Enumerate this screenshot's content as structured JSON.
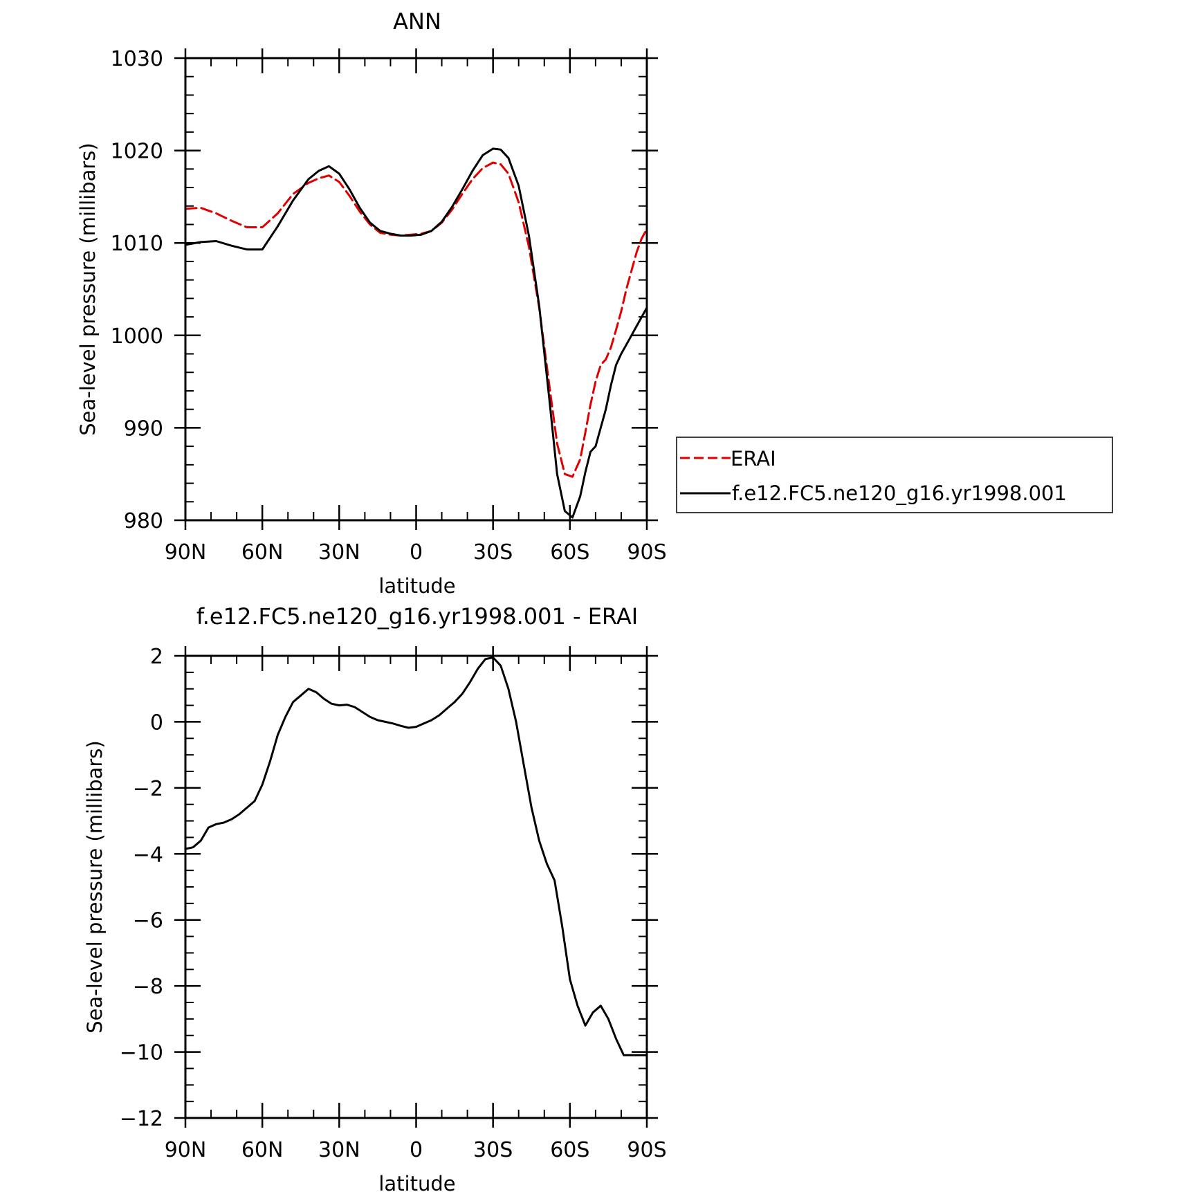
{
  "chart_data": [
    {
      "type": "line",
      "title": "ANN",
      "xlabel": "latitude",
      "ylabel": "Sea-level pressure (millibars)",
      "xlim": [
        90,
        -90
      ],
      "ylim": [
        980,
        1030
      ],
      "xticks": [
        90,
        60,
        30,
        0,
        -30,
        -60,
        -90
      ],
      "xtick_labels": [
        "90N",
        "60N",
        "30N",
        "0",
        "30S",
        "60S",
        "90S"
      ],
      "yticks": [
        980,
        990,
        1000,
        1010,
        1020,
        1030
      ],
      "ytick_labels": [
        "980",
        "990",
        "1000",
        "1010",
        "1020",
        "1030"
      ],
      "legend_position": "right",
      "x": [
        90,
        84,
        78,
        72,
        66,
        60,
        54,
        48,
        42,
        38,
        34,
        30,
        26,
        22,
        18,
        14,
        10,
        6,
        2,
        -2,
        -6,
        -10,
        -14,
        -18,
        -22,
        -26,
        -30,
        -33,
        -36,
        -40,
        -44,
        -48,
        -52,
        -55,
        -58,
        -61,
        -64,
        -66,
        -68,
        -70,
        -72,
        -74,
        -76,
        -78,
        -80,
        -82,
        -84,
        -86,
        -88,
        -90
      ],
      "series": [
        {
          "name": "ERAI",
          "color": "#e00000",
          "dash": "dashed",
          "values": [
            1013.7,
            1013.8,
            1013.2,
            1012.4,
            1011.7,
            1011.7,
            1013.2,
            1015.3,
            1016.5,
            1017.0,
            1017.3,
            1016.6,
            1015.1,
            1013.4,
            1012.0,
            1011.1,
            1010.9,
            1010.8,
            1010.9,
            1011.0,
            1011.3,
            1012.2,
            1013.6,
            1015.3,
            1016.9,
            1018.1,
            1018.7,
            1018.5,
            1017.5,
            1014.4,
            1009.6,
            1003.0,
            994.5,
            988.3,
            985.0,
            984.7,
            986.6,
            989.5,
            992.5,
            995.0,
            996.8,
            997.4,
            998.7,
            1000.6,
            1002.6,
            1005.0,
            1007.0,
            1009.0,
            1010.5,
            1011.5
          ]
        },
        {
          "name": "f.e12.FC5.ne120_g16.yr1998.001",
          "color": "#000000",
          "dash": "solid",
          "values": [
            1009.8,
            1010.1,
            1010.2,
            1009.7,
            1009.3,
            1009.3,
            1011.8,
            1014.6,
            1016.9,
            1017.8,
            1018.3,
            1017.5,
            1015.8,
            1013.8,
            1012.2,
            1011.3,
            1011.0,
            1010.8,
            1010.8,
            1010.9,
            1011.3,
            1012.3,
            1013.9,
            1015.8,
            1017.8,
            1019.5,
            1020.2,
            1020.1,
            1019.2,
            1016.2,
            1010.8,
            1003.2,
            993.0,
            985.0,
            981.0,
            980.3,
            982.6,
            985.2,
            987.4,
            988.0,
            990.0,
            992.0,
            994.6,
            996.8,
            998.0,
            999.0,
            1000.0,
            1001.0,
            1002.0,
            1003.0
          ]
        }
      ]
    },
    {
      "type": "line",
      "title": "f.e12.FC5.ne120_g16.yr1998.001 - ERAI",
      "xlabel": "latitude",
      "ylabel": "Sea-level pressure (millibars)",
      "xlim": [
        90,
        -90
      ],
      "ylim": [
        -12,
        2
      ],
      "xticks": [
        90,
        60,
        30,
        0,
        -30,
        -60,
        -90
      ],
      "xtick_labels": [
        "90N",
        "60N",
        "30N",
        "0",
        "30S",
        "60S",
        "90S"
      ],
      "yticks": [
        -12,
        -10,
        -8,
        -6,
        -4,
        -2,
        0,
        2
      ],
      "ytick_labels": [
        "-12",
        "-10",
        "-8",
        "-6",
        "-4",
        "-2",
        "0",
        "2"
      ],
      "x": [
        90,
        87,
        84,
        81,
        78,
        75,
        72,
        69,
        66,
        63,
        60,
        57,
        54,
        51,
        48,
        45,
        42,
        39,
        36,
        33,
        30,
        27,
        24,
        21,
        18,
        15,
        12,
        9,
        6,
        3,
        0,
        -3,
        -6,
        -9,
        -12,
        -15,
        -18,
        -21,
        -24,
        -27,
        -30,
        -33,
        -36,
        -39,
        -42,
        -45,
        -48,
        -51,
        -54,
        -57,
        -60,
        -63,
        -66,
        -69,
        -72,
        -75,
        -78,
        -81,
        -84,
        -86,
        -88,
        -90
      ],
      "series": [
        {
          "name": "",
          "color": "#000000",
          "dash": "solid",
          "values": [
            -3.85,
            -3.8,
            -3.6,
            -3.2,
            -3.1,
            -3.05,
            -2.95,
            -2.8,
            -2.6,
            -2.4,
            -1.9,
            -1.2,
            -0.4,
            0.15,
            0.6,
            0.8,
            1.0,
            0.9,
            0.7,
            0.55,
            0.5,
            0.52,
            0.45,
            0.3,
            0.15,
            0.05,
            0.0,
            -0.05,
            -0.12,
            -0.18,
            -0.15,
            -0.05,
            0.05,
            0.2,
            0.4,
            0.6,
            0.85,
            1.2,
            1.6,
            1.9,
            1.95,
            1.7,
            1.0,
            0.0,
            -1.3,
            -2.6,
            -3.6,
            -4.3,
            -4.8,
            -6.2,
            -7.8,
            -8.6,
            -9.2,
            -8.8,
            -8.6,
            -9.0,
            -9.6,
            -10.1,
            -10.1,
            -10.1,
            -10.1,
            -10.1
          ]
        }
      ]
    }
  ]
}
